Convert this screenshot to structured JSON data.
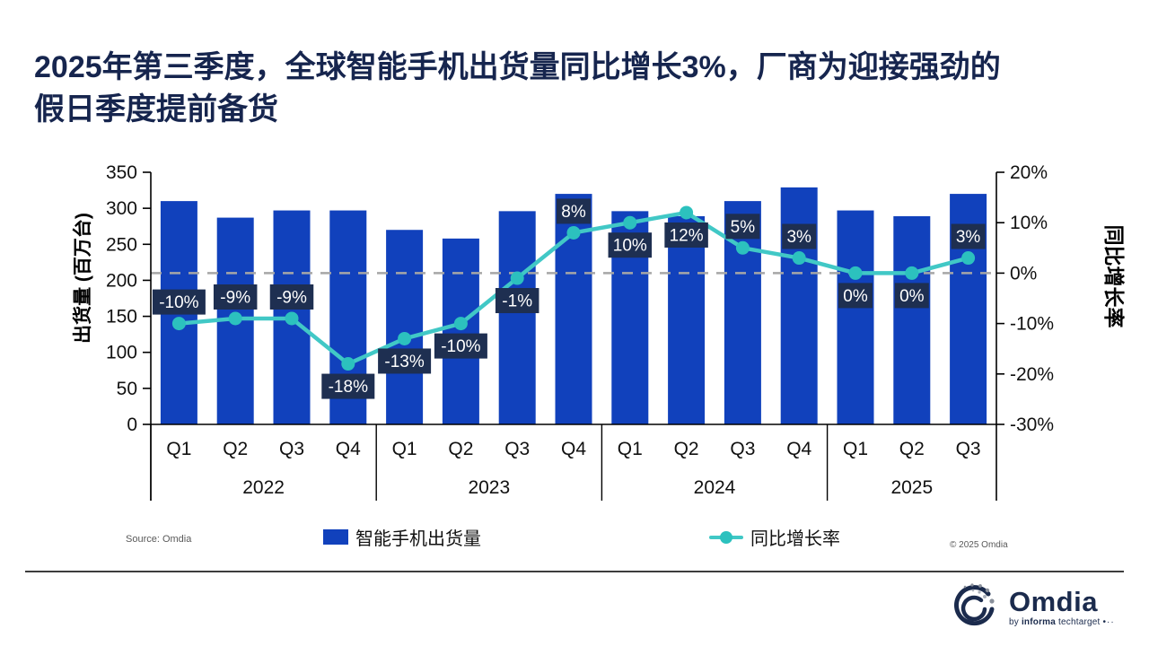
{
  "page": {
    "title_line1": "2025年第三季度，全球智能手机出货量同比增长3%，厂商为迎接强劲的",
    "title_line2": "假日季度提前备货",
    "source": "Source: Omdia",
    "copyright": "© 2025 Omdia",
    "logo": {
      "brand": "Omdia",
      "by": "by",
      "informa": "informa",
      "techtarget": "techtarget",
      "dots": "•··"
    }
  },
  "chart_data": {
    "type": "combo-bar-line",
    "title": "",
    "categories": [
      "Q1",
      "Q2",
      "Q3",
      "Q4",
      "Q1",
      "Q2",
      "Q3",
      "Q4",
      "Q1",
      "Q2",
      "Q3",
      "Q4",
      "Q1",
      "Q2",
      "Q3"
    ],
    "year_groups": [
      {
        "label": "2022",
        "count": 4
      },
      {
        "label": "2023",
        "count": 4
      },
      {
        "label": "2024",
        "count": 4
      },
      {
        "label": "2025",
        "count": 3
      }
    ],
    "series": [
      {
        "name": "智能手机出货量",
        "type": "bar",
        "axis": "left",
        "color": "#1141BC",
        "values": [
          310,
          287,
          297,
          297,
          270,
          258,
          296,
          320,
          296,
          289,
          310,
          329,
          297,
          289,
          320
        ]
      },
      {
        "name": "同比增长率",
        "type": "line",
        "axis": "right",
        "color": "#41C8C6",
        "marker_color": "#2CC1BE",
        "label_bg": "#1E2F51",
        "label_fg": "#FFFFFF",
        "values": [
          -10,
          -9,
          -9,
          -18,
          -13,
          -10,
          -1,
          8,
          10,
          12,
          5,
          3,
          0,
          0,
          3
        ],
        "labels": [
          "-10%",
          "-9%",
          "-9%",
          "-18%",
          "-13%",
          "-10%",
          "-1%",
          "8%",
          "10%",
          "12%",
          "5%",
          "3%",
          "0%",
          "0%",
          "3%"
        ],
        "label_position": [
          "above",
          "above",
          "above",
          "below",
          "below",
          "below",
          "below",
          "above",
          "below",
          "below",
          "above",
          "above",
          "below",
          "below",
          "above"
        ]
      }
    ],
    "left_axis": {
      "title": "出货量 (百万台)",
      "min": 0,
      "max": 350,
      "step": 50,
      "ticks": [
        "350",
        "300",
        "250",
        "200",
        "150",
        "100",
        "50",
        "0"
      ]
    },
    "right_axis": {
      "title": "同比增长率",
      "min": -30,
      "max": 20,
      "step": 10,
      "ticks": [
        "20%",
        "10%",
        "0%",
        "-10%",
        "-20%",
        "-30%"
      ]
    },
    "zero_line": {
      "value": 0,
      "style": "dashed",
      "color": "#A6A6A6"
    },
    "grid": "off",
    "legend_position": "bottom"
  },
  "legend": [
    {
      "label": "智能手机出货量",
      "marker": "square",
      "color": "#1141BC"
    },
    {
      "label": "同比增长率",
      "marker": "line-dot",
      "color": "#41C8C6",
      "dot_color": "#2CC1BE"
    }
  ]
}
